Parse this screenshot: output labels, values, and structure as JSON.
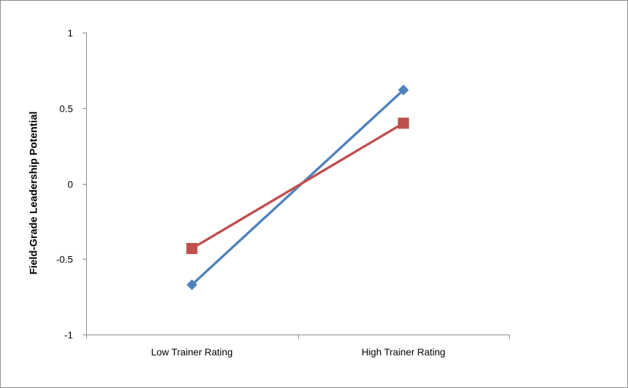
{
  "chart_data": {
    "type": "line",
    "title": "",
    "xlabel": "",
    "ylabel": "Field-Grade Leadership Potential",
    "categories": [
      "Low Trainer Rating",
      "High Trainer Rating"
    ],
    "ylim": [
      -1,
      1
    ],
    "yticks": [
      "1",
      "0.5",
      "0",
      "-0.5",
      "-1"
    ],
    "ytick_values": [
      1,
      0.5,
      0,
      -0.5,
      -1
    ],
    "grid": false,
    "legend": "none",
    "series": [
      {
        "values": [
          -0.67,
          0.62
        ],
        "color": "#4f81bd",
        "marker": "diamond"
      },
      {
        "values": [
          -0.43,
          0.4
        ],
        "color": "#c0504d",
        "marker": "square"
      }
    ]
  }
}
